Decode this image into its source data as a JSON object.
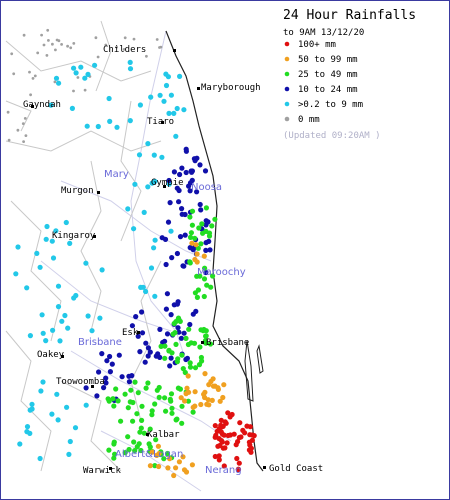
{
  "legend": {
    "title": "24 Hour Rainfalls",
    "subtitle": "to 9AM 13/12/20",
    "categories": [
      {
        "label": "100+ mm",
        "color": "#e01010"
      },
      {
        "label": "50  to 99 mm",
        "color": "#f0a020"
      },
      {
        "label": "25  to 49 mm",
        "color": "#22dd22"
      },
      {
        "label": "10  to 24 mm",
        "color": "#1010aa"
      },
      {
        "label": ">0.2 to 9 mm",
        "color": "#22c8e8"
      },
      {
        "label": "0 mm",
        "color": "#a0a0a0"
      }
    ],
    "updated": "(Updated 09:20AM  )"
  },
  "towns": {
    "childers": "Childers",
    "maryborough": "Maryborough",
    "gayndah": "Gayndah",
    "tiaro": "Tiaro",
    "gympie": "Gympie",
    "murgon": "Murgon",
    "kingaroy": "Kingaroy",
    "esk": "Esk",
    "brisbane": "Brisbane",
    "oakey": "Oakey",
    "toowoomba": "Toowoomba",
    "kalbar": "Kalbar",
    "warwick": "Warwick",
    "gold_coast": "Gold Coast"
  },
  "regions": {
    "mary": "Mary",
    "noosa": "Noosa",
    "maroochy": "Maroochy",
    "brisbane": "Brisbane",
    "albert_logan": "Albert&Logan",
    "nerang": "Nerang"
  },
  "colors": {
    "frame": "#3a3aa0",
    "coast": "#222222",
    "boundary": "#c8c8c8",
    "catchment": "#d0d0ea"
  }
}
